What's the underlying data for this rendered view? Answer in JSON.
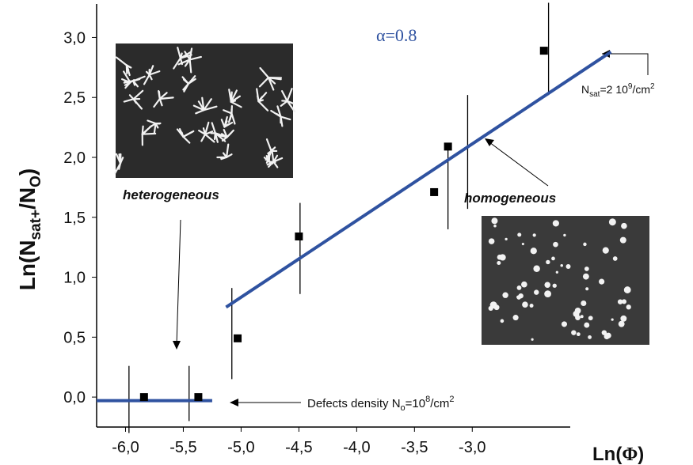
{
  "chart_data": {
    "type": "scatter",
    "x_label": {
      "main": "Ln(",
      "symbol": "Φ",
      "end": ")"
    },
    "y_label": {
      "main": "Ln(N",
      "sub": "sat+",
      "end": "/N",
      "sub2": "O",
      "close": ")"
    },
    "xlim": [
      -6.25,
      -1.7
    ],
    "ylim": [
      -0.25,
      3.28
    ],
    "xticks": [
      {
        "value": -6,
        "label": "-6,0"
      },
      {
        "value": -5.5,
        "label": "-5,5"
      },
      {
        "value": -5,
        "label": "-5,0"
      },
      {
        "value": -4.5,
        "label": "-4,5"
      },
      {
        "value": -4,
        "label": "-4,0"
      },
      {
        "value": -3.5,
        "label": "-3,5"
      },
      {
        "value": -3,
        "label": "-3,0"
      }
    ],
    "yticks": [
      {
        "value": 0,
        "label": "0,0"
      },
      {
        "value": 0.5,
        "label": "0,5"
      },
      {
        "value": 1,
        "label": "1,0"
      },
      {
        "value": 1.5,
        "label": "1,5"
      },
      {
        "value": 2,
        "label": "2,0"
      },
      {
        "value": 2.5,
        "label": "2,5"
      },
      {
        "value": 3,
        "label": "3,0"
      }
    ],
    "points": {
      "color": "#000000",
      "x": [
        -5.84,
        -5.37,
        -5.03,
        -4.5,
        -3.33,
        -3.21,
        -2.38
      ],
      "y": [
        0.0,
        0.0,
        0.49,
        1.34,
        1.71,
        2.09,
        2.89
      ]
    },
    "error_bars": {
      "color": "#000000",
      "x": [
        -5.97,
        -5.45,
        -5.08,
        -4.49,
        -3.21,
        -3.04,
        -2.34
      ],
      "low": [
        -0.3,
        -0.2,
        0.15,
        0.86,
        1.4,
        1.57,
        2.52
      ],
      "high": [
        0.26,
        0.26,
        0.91,
        1.62,
        2.08,
        2.52,
        3.29
      ]
    },
    "fit_lines": [
      {
        "color": "#2f52a0",
        "x": [
          -6.25,
          -5.25
        ],
        "y": [
          -0.03,
          -0.03
        ]
      },
      {
        "color": "#2f52a0",
        "x": [
          -5.13,
          -1.8
        ],
        "y": [
          0.75,
          2.88
        ]
      }
    ],
    "annotations": {
      "alpha": "α=0.8",
      "nsat": {
        "a": "N",
        "sub": "sat",
        "b": "=2 10",
        "sup": "9",
        "c": "/cm",
        "sup2": "2"
      },
      "heterogeneous": "heterogeneous",
      "homogeneous": "homogeneous",
      "defects": {
        "a": "Defects density N",
        "sub": "o",
        "b": "=10",
        "sup": "8",
        "c": "/cm",
        "sup2": "2"
      }
    }
  }
}
